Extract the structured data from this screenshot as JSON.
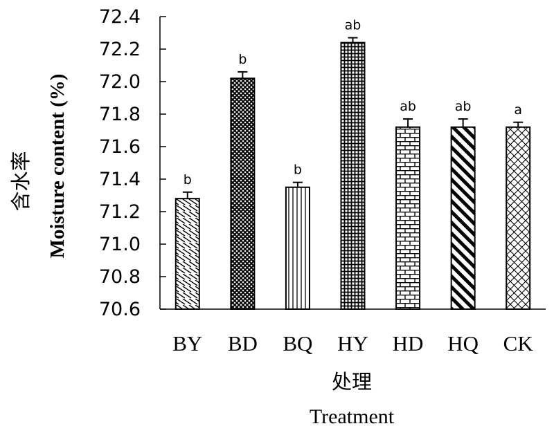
{
  "chart_data": {
    "type": "bar",
    "categories": [
      "BY",
      "BD",
      "BQ",
      "HY",
      "HD",
      "HQ",
      "CK"
    ],
    "values": [
      71.28,
      72.02,
      71.35,
      72.24,
      71.72,
      71.72,
      71.72
    ],
    "errors": [
      0.04,
      0.04,
      0.03,
      0.03,
      0.05,
      0.05,
      0.03
    ],
    "significance": [
      "b",
      "b",
      "b",
      "ab",
      "ab",
      "ab",
      "a"
    ],
    "patterns": [
      "diag-dash",
      "crosshatch-dense",
      "vertical-lines",
      "grid-dense",
      "brick",
      "diag-thick",
      "crosshatch-diamond"
    ],
    "ylim": [
      70.6,
      72.4
    ],
    "yticks": [
      "70.6",
      "70.8",
      "71.0",
      "71.2",
      "71.4",
      "71.6",
      "71.8",
      "72.0",
      "72.2",
      "72.4"
    ],
    "ylabel_cn": "含水率",
    "ylabel": "Moisture content (%)",
    "xlabel_cn": "处理",
    "xlabel": "Treatment",
    "grid": false,
    "legend": "none"
  }
}
